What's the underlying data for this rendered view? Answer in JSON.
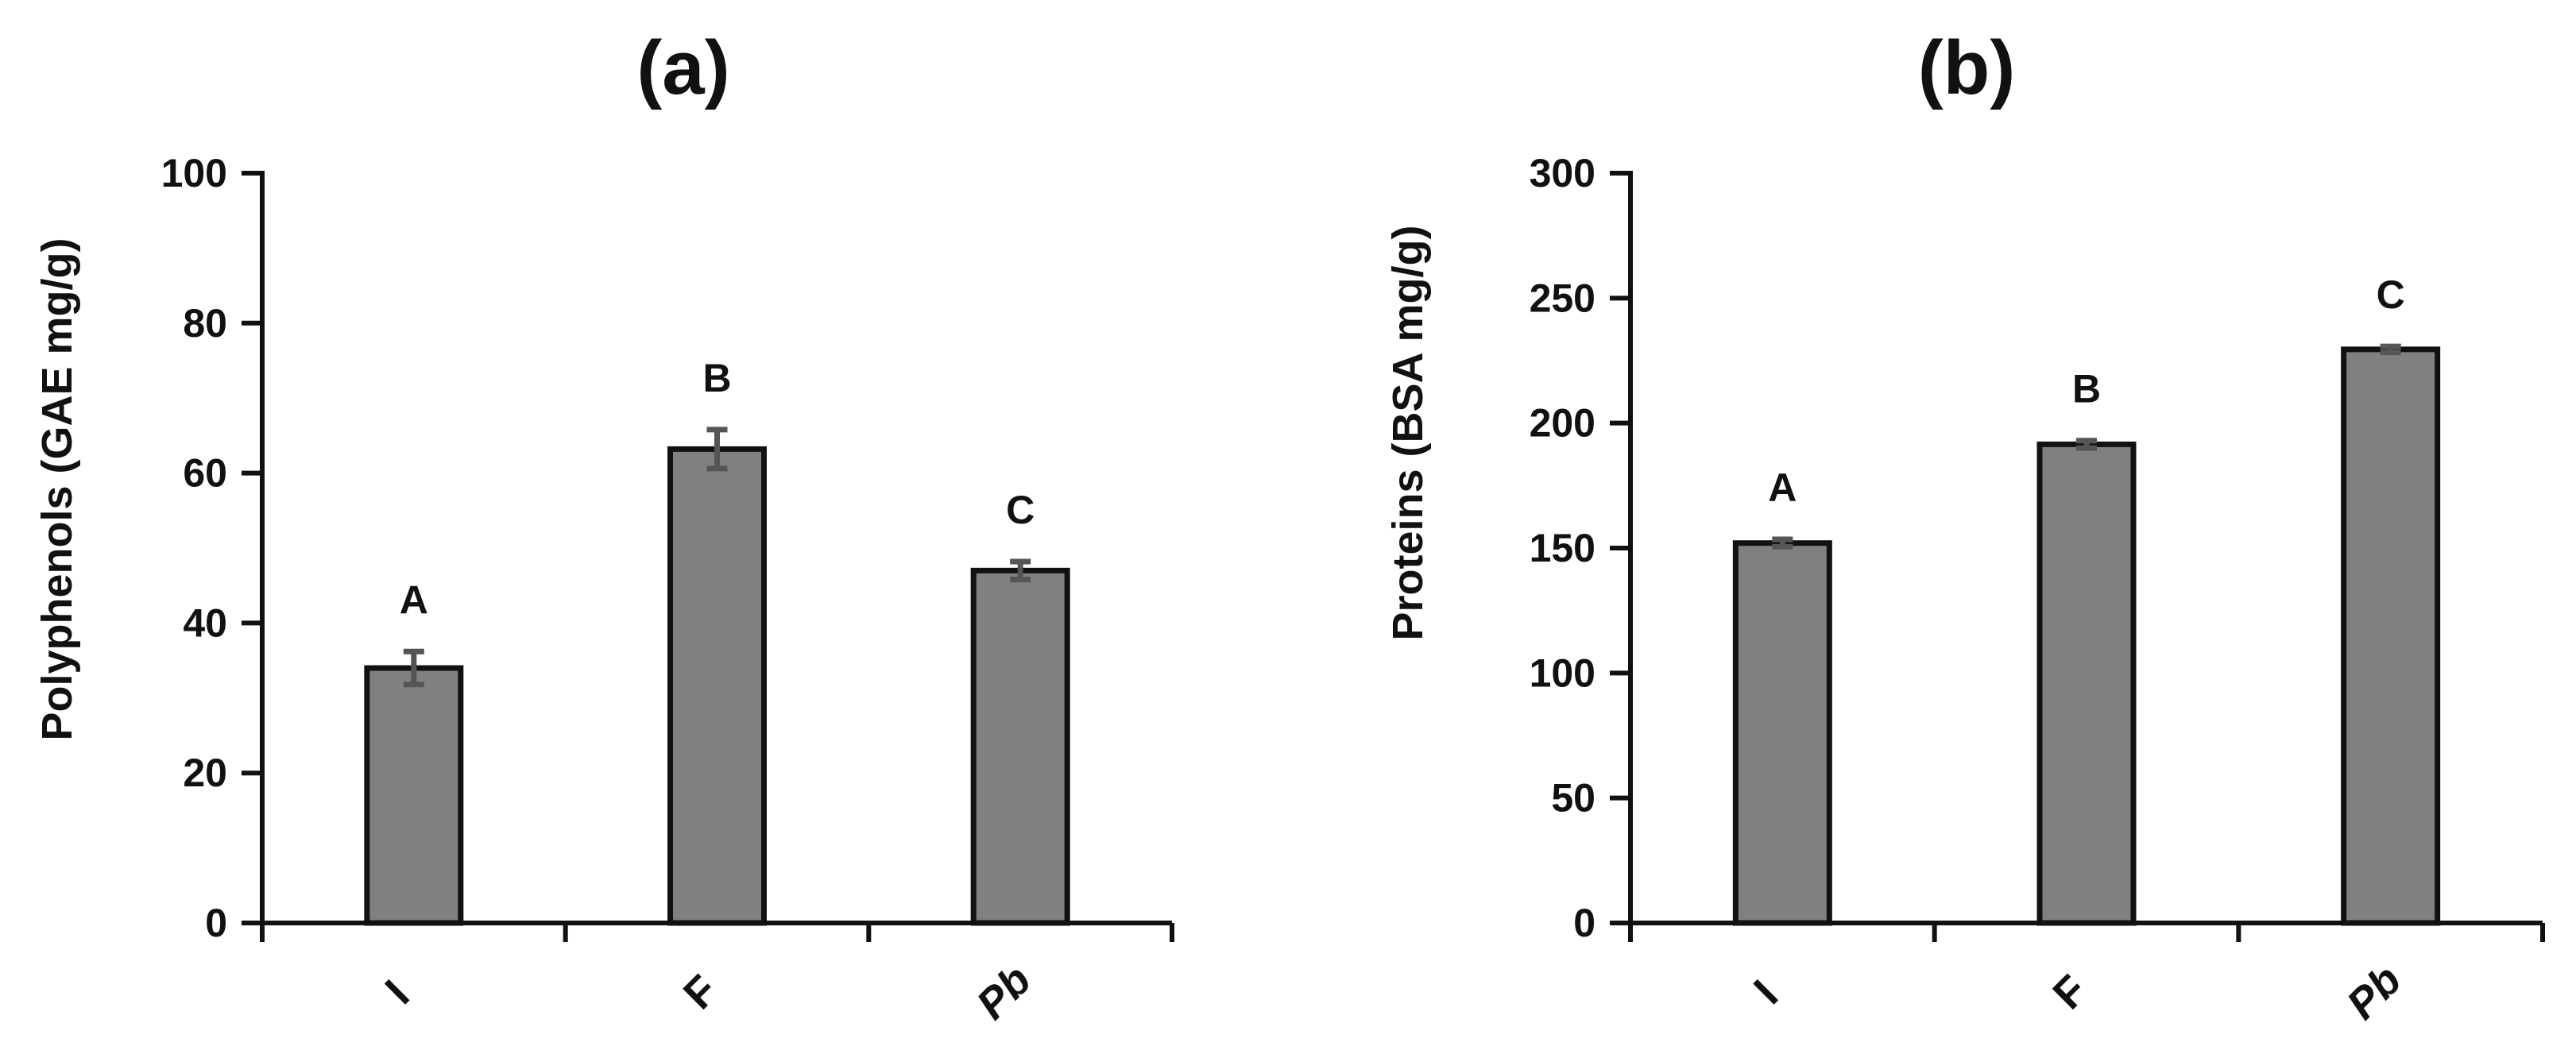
{
  "chart_data": [
    {
      "type": "bar",
      "title": "(a)",
      "ylabel": "Polyphenols (GAE mg/g)",
      "xlabel": "",
      "ylim": [
        0,
        100
      ],
      "yticks": [
        "0",
        "20",
        "40",
        "60",
        "80",
        "100"
      ],
      "categories": [
        "I",
        "F",
        "Pb"
      ],
      "values": [
        34,
        63.2,
        47
      ],
      "errors": [
        2.2,
        2.6,
        1.2
      ],
      "letters": [
        "A",
        "B",
        "C"
      ],
      "bar_color": "#808080",
      "grid": false,
      "legend": "none"
    },
    {
      "type": "bar",
      "title": "(b)",
      "ylabel": "Proteins (BSA mg/g)",
      "xlabel": "",
      "ylim": [
        0,
        300
      ],
      "yticks": [
        "0",
        "50",
        "100",
        "150",
        "200",
        "250",
        "300"
      ],
      "categories": [
        "I",
        "F",
        "Pb"
      ],
      "values": [
        152,
        191.5,
        229.5
      ],
      "errors": [
        1.5,
        1.5,
        1.2
      ],
      "letters": [
        "A",
        "B",
        "C"
      ],
      "bar_color": "#808080",
      "grid": false,
      "legend": "none"
    }
  ]
}
